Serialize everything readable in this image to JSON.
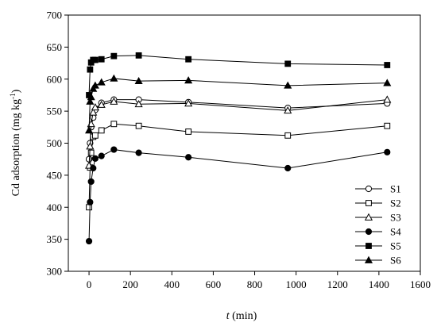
{
  "chart_data": {
    "type": "line",
    "xlabel_italic": "t",
    "xlabel_rest": " (min)",
    "ylabel_main": "Cd adsorption (mg kg",
    "ylabel_sup": "-1",
    "ylabel_close": ")",
    "xlim": [
      -100,
      1600
    ],
    "ylim": [
      300,
      700
    ],
    "xticks": [
      0,
      200,
      400,
      600,
      800,
      1000,
      1200,
      1400,
      1600
    ],
    "yticks": [
      300,
      350,
      400,
      450,
      500,
      550,
      600,
      650,
      700
    ],
    "legend_position": "lower-right",
    "x": [
      0,
      5,
      10,
      20,
      30,
      60,
      120,
      240,
      480,
      960,
      1440
    ],
    "series": [
      {
        "name": "S1",
        "marker": "circle-open",
        "values": [
          475,
          500,
          525,
          540,
          552,
          563,
          568,
          568,
          564,
          555,
          562
        ]
      },
      {
        "name": "S2",
        "marker": "square-open",
        "values": [
          400,
          462,
          485,
          510,
          512,
          520,
          530,
          527,
          518,
          512,
          527
        ]
      },
      {
        "name": "S3",
        "marker": "triangle-open",
        "values": [
          465,
          495,
          530,
          548,
          556,
          560,
          565,
          561,
          562,
          551,
          568
        ]
      },
      {
        "name": "S4",
        "marker": "circle-filled",
        "values": [
          347,
          408,
          440,
          461,
          476,
          480,
          490,
          485,
          478,
          461,
          486
        ]
      },
      {
        "name": "S5",
        "marker": "square-filled",
        "values": [
          575,
          615,
          626,
          630,
          630,
          631,
          636,
          637,
          631,
          624,
          622
        ]
      },
      {
        "name": "S6",
        "marker": "triangle-filled",
        "values": [
          520,
          565,
          572,
          585,
          590,
          595,
          601,
          597,
          598,
          590,
          594
        ]
      }
    ]
  }
}
